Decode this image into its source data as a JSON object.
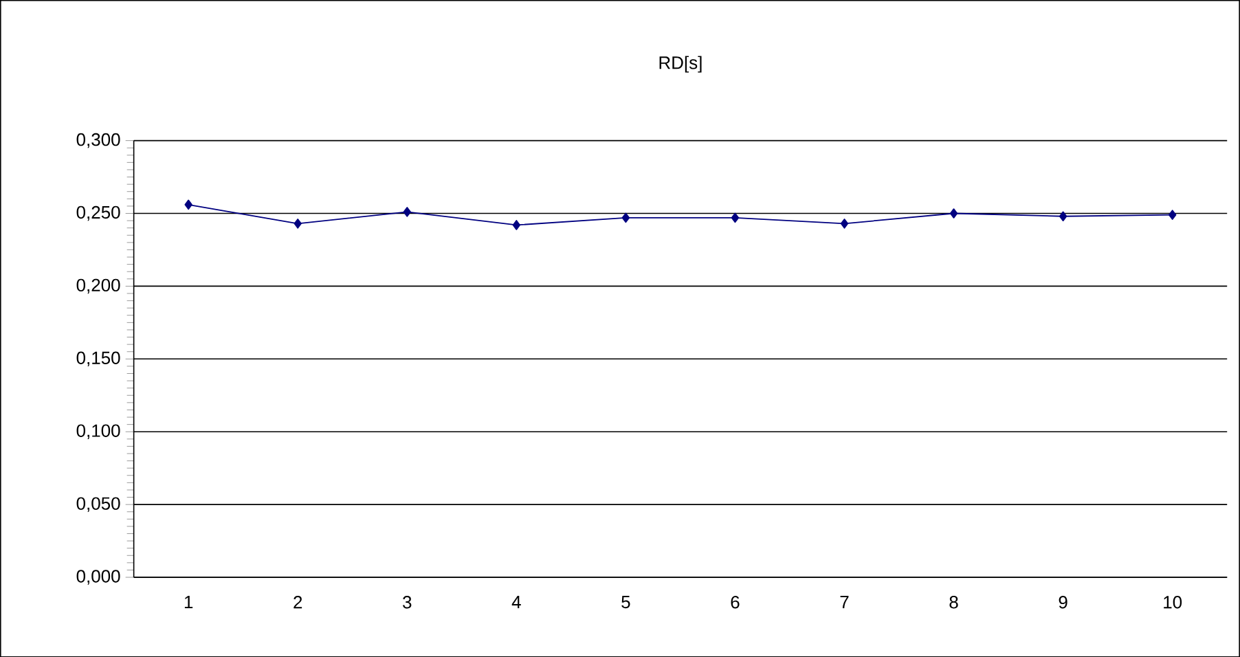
{
  "chart_data": {
    "type": "line",
    "title": "RD[s]",
    "categories": [
      "1",
      "2",
      "3",
      "4",
      "5",
      "6",
      "7",
      "8",
      "9",
      "10"
    ],
    "series": [
      {
        "color": "#000080",
        "values": [
          0.256,
          0.243,
          0.251,
          0.242,
          0.247,
          0.247,
          0.243,
          0.25,
          0.248,
          0.249
        ]
      }
    ],
    "ylim": [
      0,
      0.3
    ],
    "yticks": [
      {
        "value": 0,
        "label": "0,000"
      },
      {
        "value": 0.05,
        "label": "0,050"
      },
      {
        "value": 0.1,
        "label": "0,100"
      },
      {
        "value": 0.15,
        "label": "0,150"
      },
      {
        "value": 0.2,
        "label": "0,200"
      },
      {
        "value": 0.25,
        "label": "0,250"
      },
      {
        "value": 0.3,
        "label": "0,300"
      }
    ],
    "grid": "y",
    "marker": "diamond",
    "line_style": "solid"
  }
}
